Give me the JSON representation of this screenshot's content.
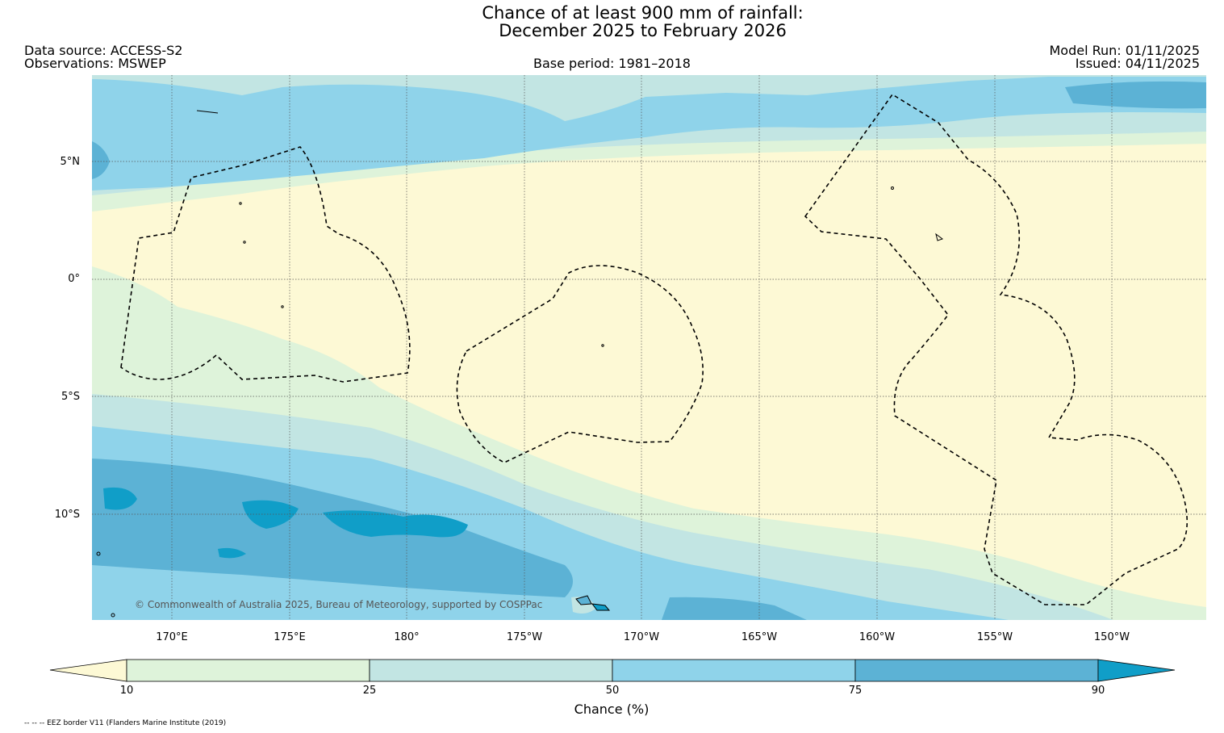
{
  "title": {
    "line1": "Chance of at least 900 mm of rainfall:",
    "line2": "December 2025 to February 2026"
  },
  "header": {
    "data_source": "Data source: ACCESS-S2",
    "observations": "Observations: MSWEP",
    "base_period": "Base period: 1981–2018",
    "model_run": "Model Run: 01/11/2025",
    "issued": "Issued: 04/11/2025"
  },
  "axes": {
    "latitude_ticks": [
      "5°N",
      "0°",
      "5°S",
      "10°S"
    ],
    "longitude_ticks": [
      "170°E",
      "175°E",
      "180°",
      "175°W",
      "170°W",
      "165°W",
      "160°W",
      "155°W",
      "150°W"
    ]
  },
  "copyright": "© Commonwealth of Australia 2025, Bureau of Meteorology, supported by COSPPac",
  "colorbar": {
    "title": "Chance (%)",
    "labels": [
      "10",
      "25",
      "50",
      "75",
      "90"
    ],
    "colors": {
      "below_10": "#fdf9d5",
      "10_25": "#def3da",
      "25_50": "#c2e5e3",
      "50_75": "#8fd3ea",
      "75_90": "#5cb2d5",
      "above_90": "#109ec8"
    }
  },
  "footnote": "-- -- -- EEZ border V11 (Flanders Marine Institute (2019)"
}
